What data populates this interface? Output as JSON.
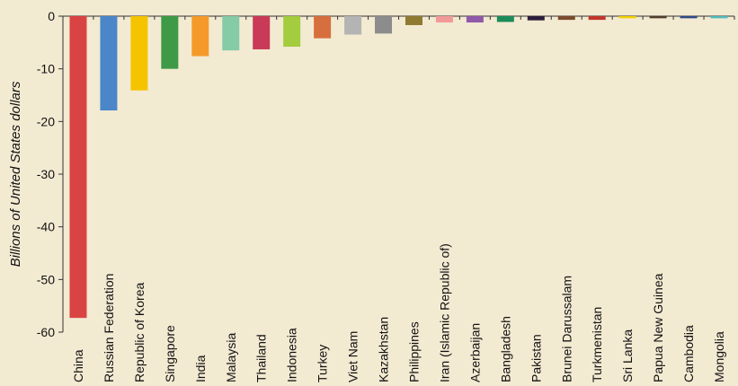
{
  "chart_data": {
    "type": "bar",
    "title": "",
    "xlabel": "",
    "ylabel": "Billions of United States dollars",
    "ylim": [
      -60,
      0
    ],
    "yticks": [
      "0",
      "-10",
      "-20",
      "-30",
      "-40",
      "-50",
      "-60"
    ],
    "grid": false,
    "categories": [
      "China",
      "Russian Federation",
      "Republic of Korea",
      "Singapore",
      "India",
      "Malaysia",
      "Thailand",
      "Indonesia",
      "Turkey",
      "Viet Nam",
      "Kazakhstan",
      "Philippines",
      "Iran (Islamic Republic of)",
      "Azerbaijan",
      "Bangladesh",
      "Pakistan",
      "Brunei Darussalam",
      "Turkmenistan",
      "Sri Lanka",
      "Papua New Guinea",
      "Cambodia",
      "Mongolia"
    ],
    "values": [
      -57.3,
      -17.9,
      -14.1,
      -10.0,
      -7.6,
      -6.5,
      -6.3,
      -5.8,
      -4.2,
      -3.5,
      -3.3,
      -1.7,
      -1.2,
      -1.2,
      -1.1,
      -0.8,
      -0.7,
      -0.7,
      -0.4,
      -0.4,
      -0.4,
      -0.4
    ],
    "colors": [
      "#d94343",
      "#4a86c8",
      "#f5c400",
      "#3e9a46",
      "#f59a2a",
      "#84cba6",
      "#c83a57",
      "#a4cc3f",
      "#d66f3d",
      "#b4b4b4",
      "#8c8c8c",
      "#8f7a32",
      "#f29a9a",
      "#8f5aa8",
      "#1b8b5a",
      "#2c1e3a",
      "#7b4a2c",
      "#c0362c",
      "#f2d100",
      "#4f3f28",
      "#2d4b87",
      "#50bcc0"
    ]
  }
}
